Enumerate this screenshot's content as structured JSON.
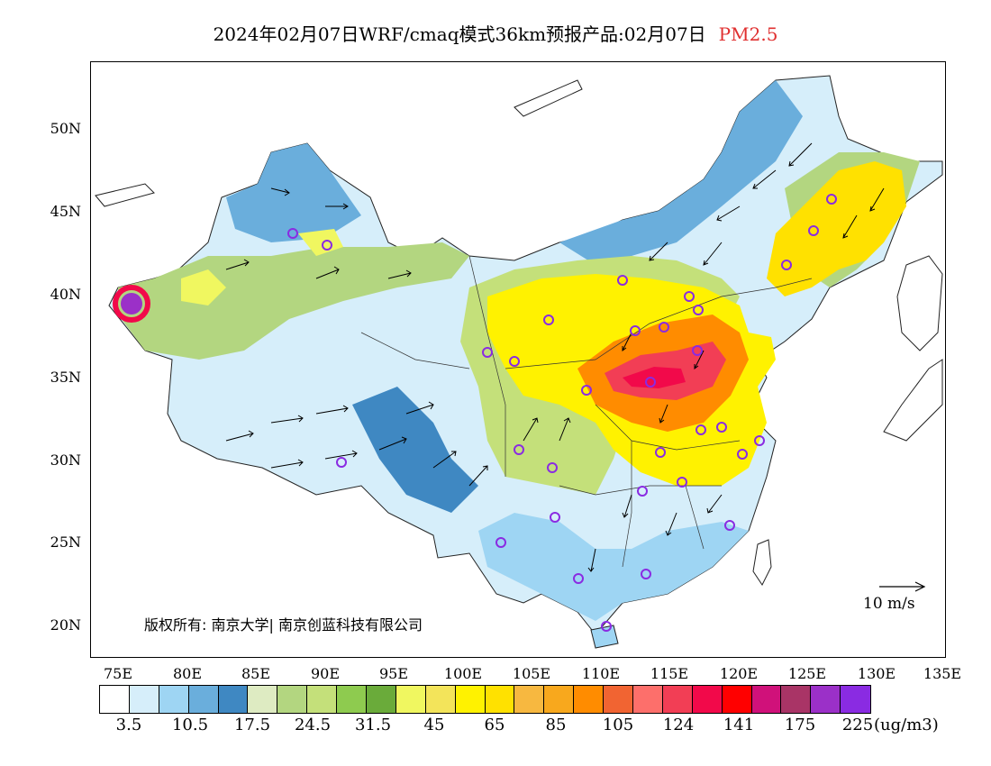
{
  "title": {
    "main": "2024年02月07日WRF/cmaq模式36km预报产品:02月07日",
    "pollutant": "PM2.5",
    "pollutant_color": "#e03030"
  },
  "axes": {
    "lat_labels": [
      "50N",
      "45N",
      "40N",
      "35N",
      "30N",
      "25N",
      "20N"
    ],
    "lon_labels": [
      "75E",
      "80E",
      "85E",
      "90E",
      "95E",
      "100E",
      "105E",
      "110E",
      "115E",
      "120E",
      "125E",
      "130E",
      "135E"
    ]
  },
  "copyright": "版权所有: 南京大学| 南京创蓝科技有限公司",
  "scale_vector": {
    "label": "10 m/s"
  },
  "legend": {
    "colors": [
      "#ffffff",
      "#d6eefa",
      "#9ed5f3",
      "#6aaedc",
      "#3f88c2",
      "#deebc2",
      "#b3d680",
      "#c4e07a",
      "#8ecb4f",
      "#6aab3a",
      "#f0f760",
      "#f3e45a",
      "#fff200",
      "#ffe100",
      "#f7b840",
      "#f8a81d",
      "#ff8c00",
      "#f16432",
      "#fd6f6b",
      "#f23e55",
      "#f2094a",
      "#ff0000",
      "#d0117a",
      "#a93466",
      "#9b30c8",
      "#8a2be2"
    ],
    "tick_labels": [
      "3.5",
      "10.5",
      "17.5",
      "24.5",
      "31.5",
      "45",
      "65",
      "85",
      "105",
      "124",
      "141",
      "175",
      "225"
    ],
    "unit": "(ug/m3)"
  }
}
